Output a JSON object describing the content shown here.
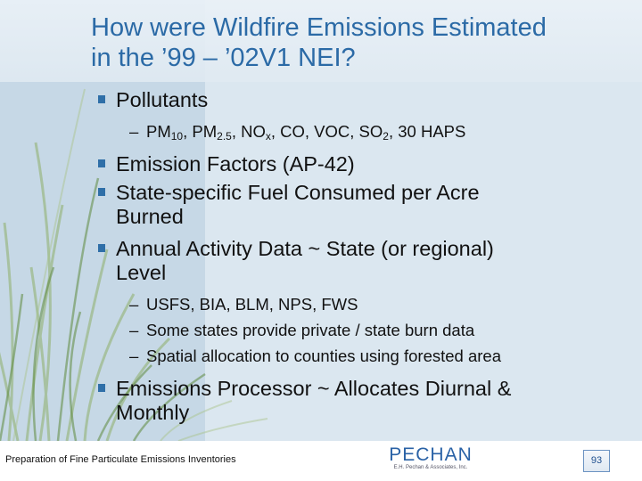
{
  "slide": {
    "title_line1": "How were Wildfire Emissions Estimated",
    "title_line2": "in the ’99 – ’02V1 NEI?",
    "bullets": [
      {
        "text": "Pollutants"
      },
      {
        "text": "Emission Factors (AP-42)"
      },
      {
        "line1": "State-specific Fuel Consumed per Acre",
        "line2": "Burned"
      },
      {
        "line1": "Annual Activity Data ~ State (or regional)",
        "line2": "Level"
      },
      {
        "line1": "Emissions Processor ~ Allocates Diurnal &",
        "line2": "Monthly"
      }
    ],
    "pollutants": {
      "pm": "PM",
      "pm10_sub": "10",
      "pm25_sub": "2.5",
      "nox": "NO",
      "nox_sub": "x",
      "co_voc_so": "CO, VOC, SO",
      "so2_sub": "2",
      "haps": "30 HAPS",
      "sep": ", "
    },
    "activity_subitems": [
      "USFS, BIA, BLM, NPS, FWS",
      "Some states provide private / state burn data",
      "Spatial allocation to counties using forested area"
    ],
    "dash": "–"
  },
  "footer": {
    "text": "Preparation of Fine Particulate Emissions Inventories",
    "logo_name": "PECHAN",
    "logo_sub": "E.H. Pechan & Associates, Inc.",
    "page_number": "93"
  },
  "colors": {
    "title": "#2b6aa6",
    "bullet_marker": "#2f6fa8",
    "logo": "#2a62a6"
  }
}
